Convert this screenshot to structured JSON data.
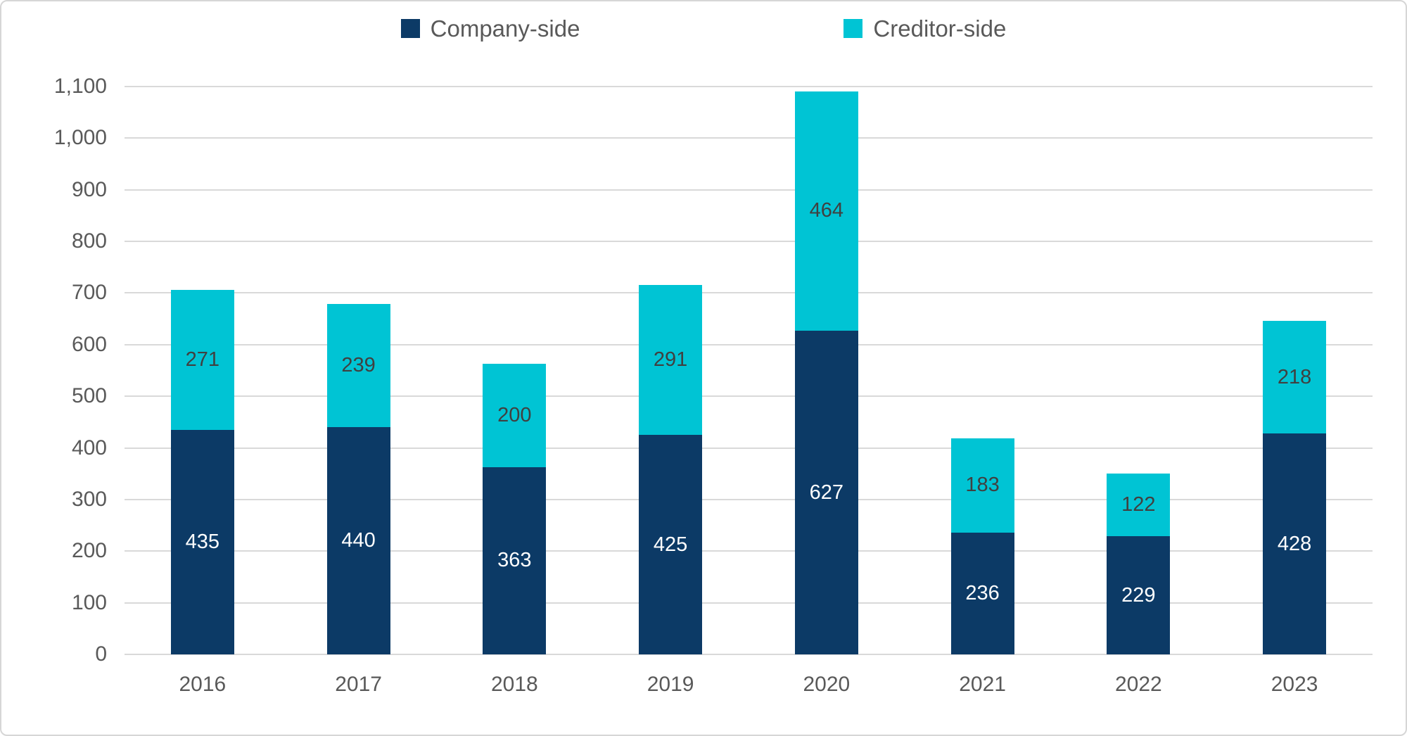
{
  "chart_data": {
    "type": "bar",
    "stacked": true,
    "title": "",
    "categories": [
      "2016",
      "2017",
      "2018",
      "2019",
      "2020",
      "2021",
      "2022",
      "2023"
    ],
    "series": [
      {
        "name": "Company-side",
        "color": "#0c3a66",
        "label_color": "#ffffff",
        "values": [
          435,
          440,
          363,
          425,
          627,
          236,
          229,
          428
        ]
      },
      {
        "name": "Creditor-side",
        "color": "#00c4d4",
        "label_color": "#404040",
        "values": [
          271,
          239,
          200,
          291,
          464,
          183,
          122,
          218
        ]
      }
    ],
    "totals": [
      706,
      679,
      563,
      716,
      1091,
      419,
      351,
      646
    ],
    "ylim": [
      0,
      1100
    ],
    "ytick_step": 100,
    "ytick_labels": [
      "0",
      "100",
      "200",
      "300",
      "400",
      "500",
      "600",
      "700",
      "800",
      "900",
      "1,000",
      "1,100"
    ],
    "grid": true,
    "legend_position": "top",
    "xlabel": "",
    "ylabel": ""
  },
  "colors": {
    "gridline": "#d9d9d9",
    "axis_text": "#595959",
    "frame_border": "#d6d6d6",
    "background": "#ffffff"
  }
}
